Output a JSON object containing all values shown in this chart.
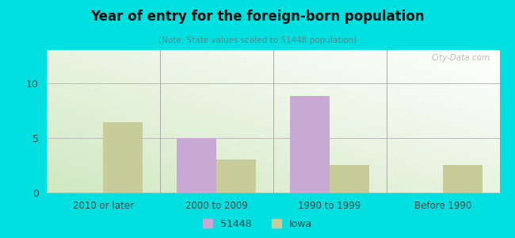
{
  "title": "Year of entry for the foreign-born population",
  "subtitle": "(Note: State values scaled to 51448 population)",
  "categories": [
    "2010 or later",
    "2000 to 2009",
    "1990 to 1999",
    "Before 1990"
  ],
  "series_51448": [
    0,
    5.0,
    8.8,
    0
  ],
  "series_iowa": [
    6.4,
    3.0,
    2.5,
    2.5
  ],
  "color_51448": "#c9a8d4",
  "color_iowa": "#c8cc99",
  "background_outer": "#00e0e0",
  "ylim": [
    0,
    13
  ],
  "yticks": [
    0,
    5,
    10
  ],
  "bar_width": 0.35,
  "legend_label_51448": "51448",
  "legend_label_iowa": "Iowa",
  "watermark": "City-Data.com"
}
